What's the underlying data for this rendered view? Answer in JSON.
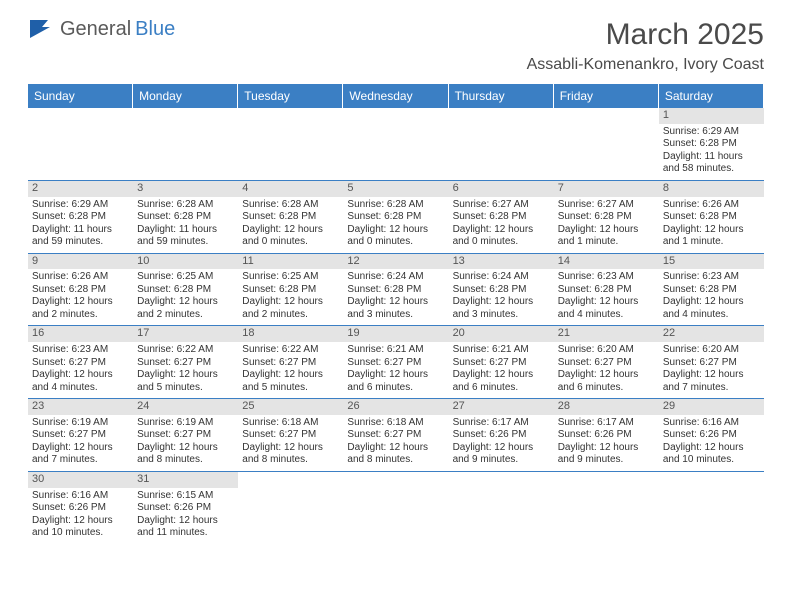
{
  "logo": {
    "text1": "General",
    "text2": "Blue"
  },
  "title": "March 2025",
  "location": "Assabli-Komenankro, Ivory Coast",
  "colors": {
    "header_bg": "#3b7fc4",
    "daynum_bg": "#e4e4e4",
    "border": "#3b7fc4",
    "text": "#333333"
  },
  "day_headers": [
    "Sunday",
    "Monday",
    "Tuesday",
    "Wednesday",
    "Thursday",
    "Friday",
    "Saturday"
  ],
  "first_day_index": 6,
  "days": [
    {
      "n": "1",
      "sr": "6:29 AM",
      "ss": "6:28 PM",
      "dl": "11 hours and 58 minutes."
    },
    {
      "n": "2",
      "sr": "6:29 AM",
      "ss": "6:28 PM",
      "dl": "11 hours and 59 minutes."
    },
    {
      "n": "3",
      "sr": "6:28 AM",
      "ss": "6:28 PM",
      "dl": "11 hours and 59 minutes."
    },
    {
      "n": "4",
      "sr": "6:28 AM",
      "ss": "6:28 PM",
      "dl": "12 hours and 0 minutes."
    },
    {
      "n": "5",
      "sr": "6:28 AM",
      "ss": "6:28 PM",
      "dl": "12 hours and 0 minutes."
    },
    {
      "n": "6",
      "sr": "6:27 AM",
      "ss": "6:28 PM",
      "dl": "12 hours and 0 minutes."
    },
    {
      "n": "7",
      "sr": "6:27 AM",
      "ss": "6:28 PM",
      "dl": "12 hours and 1 minute."
    },
    {
      "n": "8",
      "sr": "6:26 AM",
      "ss": "6:28 PM",
      "dl": "12 hours and 1 minute."
    },
    {
      "n": "9",
      "sr": "6:26 AM",
      "ss": "6:28 PM",
      "dl": "12 hours and 2 minutes."
    },
    {
      "n": "10",
      "sr": "6:25 AM",
      "ss": "6:28 PM",
      "dl": "12 hours and 2 minutes."
    },
    {
      "n": "11",
      "sr": "6:25 AM",
      "ss": "6:28 PM",
      "dl": "12 hours and 2 minutes."
    },
    {
      "n": "12",
      "sr": "6:24 AM",
      "ss": "6:28 PM",
      "dl": "12 hours and 3 minutes."
    },
    {
      "n": "13",
      "sr": "6:24 AM",
      "ss": "6:28 PM",
      "dl": "12 hours and 3 minutes."
    },
    {
      "n": "14",
      "sr": "6:23 AM",
      "ss": "6:28 PM",
      "dl": "12 hours and 4 minutes."
    },
    {
      "n": "15",
      "sr": "6:23 AM",
      "ss": "6:28 PM",
      "dl": "12 hours and 4 minutes."
    },
    {
      "n": "16",
      "sr": "6:23 AM",
      "ss": "6:27 PM",
      "dl": "12 hours and 4 minutes."
    },
    {
      "n": "17",
      "sr": "6:22 AM",
      "ss": "6:27 PM",
      "dl": "12 hours and 5 minutes."
    },
    {
      "n": "18",
      "sr": "6:22 AM",
      "ss": "6:27 PM",
      "dl": "12 hours and 5 minutes."
    },
    {
      "n": "19",
      "sr": "6:21 AM",
      "ss": "6:27 PM",
      "dl": "12 hours and 6 minutes."
    },
    {
      "n": "20",
      "sr": "6:21 AM",
      "ss": "6:27 PM",
      "dl": "12 hours and 6 minutes."
    },
    {
      "n": "21",
      "sr": "6:20 AM",
      "ss": "6:27 PM",
      "dl": "12 hours and 6 minutes."
    },
    {
      "n": "22",
      "sr": "6:20 AM",
      "ss": "6:27 PM",
      "dl": "12 hours and 7 minutes."
    },
    {
      "n": "23",
      "sr": "6:19 AM",
      "ss": "6:27 PM",
      "dl": "12 hours and 7 minutes."
    },
    {
      "n": "24",
      "sr": "6:19 AM",
      "ss": "6:27 PM",
      "dl": "12 hours and 8 minutes."
    },
    {
      "n": "25",
      "sr": "6:18 AM",
      "ss": "6:27 PM",
      "dl": "12 hours and 8 minutes."
    },
    {
      "n": "26",
      "sr": "6:18 AM",
      "ss": "6:27 PM",
      "dl": "12 hours and 8 minutes."
    },
    {
      "n": "27",
      "sr": "6:17 AM",
      "ss": "6:26 PM",
      "dl": "12 hours and 9 minutes."
    },
    {
      "n": "28",
      "sr": "6:17 AM",
      "ss": "6:26 PM",
      "dl": "12 hours and 9 minutes."
    },
    {
      "n": "29",
      "sr": "6:16 AM",
      "ss": "6:26 PM",
      "dl": "12 hours and 10 minutes."
    },
    {
      "n": "30",
      "sr": "6:16 AM",
      "ss": "6:26 PM",
      "dl": "12 hours and 10 minutes."
    },
    {
      "n": "31",
      "sr": "6:15 AM",
      "ss": "6:26 PM",
      "dl": "12 hours and 11 minutes."
    }
  ],
  "labels": {
    "sunrise": "Sunrise:",
    "sunset": "Sunset:",
    "daylight": "Daylight:"
  }
}
